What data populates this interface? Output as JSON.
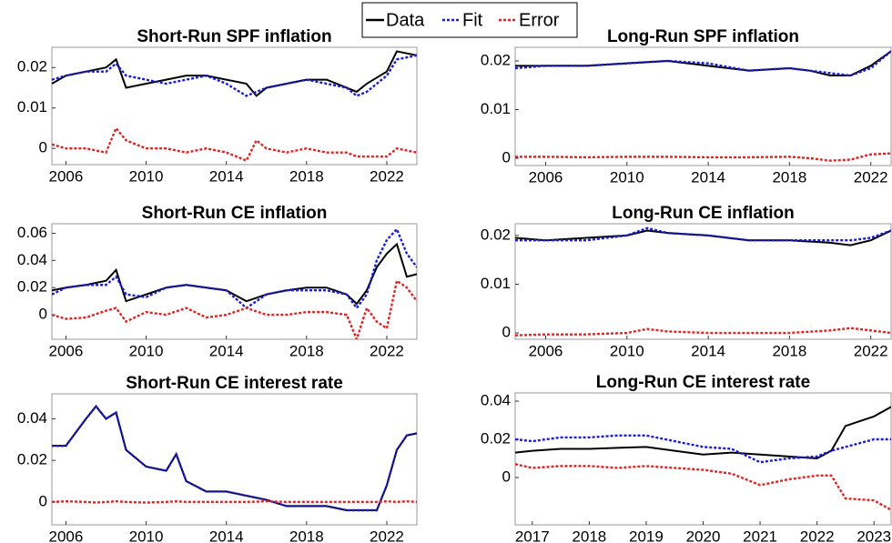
{
  "chart_data": [
    {
      "type": "line",
      "title": "Short-Run SPF inflation",
      "x": [
        2005.3,
        2006,
        2007,
        2008,
        2008.5,
        2009,
        2010,
        2011,
        2012,
        2013,
        2014,
        2015,
        2015.5,
        2016,
        2017,
        2018,
        2019,
        2020,
        2020.5,
        2021,
        2022,
        2022.5,
        2023.5
      ],
      "series": [
        {
          "name": "Data",
          "color": "#000000",
          "values": [
            0.016,
            0.018,
            0.019,
            0.02,
            0.022,
            0.015,
            0.016,
            0.017,
            0.018,
            0.018,
            0.017,
            0.016,
            0.013,
            0.015,
            0.016,
            0.017,
            0.017,
            0.015,
            0.014,
            0.016,
            0.019,
            0.024,
            0.023
          ]
        },
        {
          "name": "Fit",
          "color": "#1c1cd8",
          "values": [
            0.017,
            0.018,
            0.019,
            0.019,
            0.021,
            0.018,
            0.017,
            0.016,
            0.017,
            0.018,
            0.016,
            0.013,
            0.014,
            0.015,
            0.016,
            0.017,
            0.016,
            0.015,
            0.013,
            0.014,
            0.018,
            0.022,
            0.023
          ]
        },
        {
          "name": "Error",
          "color": "#e02424",
          "values": [
            0.001,
            0,
            0,
            -0.001,
            0.005,
            0.002,
            0,
            0,
            -0.001,
            0,
            -0.001,
            -0.003,
            0.002,
            0,
            -0.001,
            0,
            -0.001,
            -0.001,
            -0.002,
            -0.002,
            -0.002,
            0,
            -0.001
          ]
        }
      ],
      "xlim": [
        2005.3,
        2023.5
      ],
      "xticks": [
        2006,
        2010,
        2014,
        2018,
        2022
      ],
      "ylim": [
        -0.004,
        0.025
      ],
      "yticks": [
        0,
        0.01,
        0.02
      ]
    },
    {
      "type": "line",
      "title": "Long-Run SPF inflation",
      "x": [
        2004.5,
        2006,
        2008,
        2010,
        2012,
        2014,
        2016,
        2018,
        2019,
        2020,
        2021,
        2022,
        2023
      ],
      "series": [
        {
          "name": "Data",
          "color": "#000000",
          "values": [
            0.019,
            0.019,
            0.019,
            0.0195,
            0.02,
            0.019,
            0.018,
            0.0185,
            0.018,
            0.017,
            0.017,
            0.019,
            0.022
          ]
        },
        {
          "name": "Fit",
          "color": "#1c1cd8",
          "values": [
            0.0185,
            0.019,
            0.019,
            0.0195,
            0.02,
            0.0195,
            0.018,
            0.0185,
            0.018,
            0.0175,
            0.017,
            0.0185,
            0.022
          ]
        },
        {
          "name": "Error",
          "color": "#e02424",
          "values": [
            0.0003,
            0.0003,
            0.0002,
            0.0003,
            0.0003,
            0.0002,
            0.0002,
            0.0003,
            0,
            -0.0005,
            -0.0003,
            0.0008,
            0.001
          ]
        }
      ],
      "xlim": [
        2004.5,
        2023
      ],
      "xticks": [
        2006,
        2010,
        2014,
        2018,
        2022
      ],
      "ylim": [
        -0.0015,
        0.0228
      ],
      "yticks": [
        0,
        0.01,
        0.02
      ]
    },
    {
      "type": "line",
      "title": "Short-Run CE inflation",
      "x": [
        2005.3,
        2006,
        2007,
        2008,
        2008.5,
        2009,
        2010,
        2011,
        2012,
        2013,
        2014,
        2015,
        2016,
        2017,
        2018,
        2019,
        2020,
        2020.5,
        2021,
        2021.5,
        2022,
        2022.5,
        2023,
        2023.5
      ],
      "series": [
        {
          "name": "Data",
          "color": "#000000",
          "values": [
            0.018,
            0.02,
            0.022,
            0.025,
            0.033,
            0.01,
            0.015,
            0.02,
            0.022,
            0.02,
            0.018,
            0.01,
            0.015,
            0.018,
            0.02,
            0.02,
            0.015,
            0.008,
            0.018,
            0.035,
            0.045,
            0.052,
            0.028,
            0.03
          ]
        },
        {
          "name": "Fit",
          "color": "#1c1cd8",
          "values": [
            0.015,
            0.02,
            0.022,
            0.022,
            0.028,
            0.015,
            0.013,
            0.02,
            0.022,
            0.02,
            0.018,
            0.005,
            0.015,
            0.018,
            0.018,
            0.018,
            0.015,
            0.005,
            0.015,
            0.04,
            0.055,
            0.063,
            0.045,
            0.035
          ]
        },
        {
          "name": "Error",
          "color": "#e02424",
          "values": [
            0,
            -0.003,
            -0.002,
            0.003,
            0.005,
            -0.005,
            0.002,
            0,
            0.005,
            -0.002,
            0,
            0.005,
            0,
            0,
            0.002,
            0.002,
            0,
            -0.018,
            0.005,
            -0.005,
            -0.01,
            0.025,
            0.02,
            0.01
          ]
        }
      ],
      "xlim": [
        2005.3,
        2023.5
      ],
      "xticks": [
        2006,
        2010,
        2014,
        2018,
        2022
      ],
      "ylim": [
        -0.018,
        0.067
      ],
      "yticks": [
        0,
        0.02,
        0.04,
        0.06
      ]
    },
    {
      "type": "line",
      "title": "Long-Run CE inflation",
      "x": [
        2004.5,
        2006,
        2008,
        2010,
        2011,
        2012,
        2014,
        2016,
        2018,
        2020,
        2021,
        2022,
        2023
      ],
      "series": [
        {
          "name": "Data",
          "color": "#000000",
          "values": [
            0.0195,
            0.019,
            0.0195,
            0.02,
            0.021,
            0.0205,
            0.02,
            0.019,
            0.019,
            0.0185,
            0.018,
            0.019,
            0.021
          ]
        },
        {
          "name": "Fit",
          "color": "#1c1cd8",
          "values": [
            0.019,
            0.019,
            0.019,
            0.02,
            0.0215,
            0.0205,
            0.02,
            0.019,
            0.019,
            0.019,
            0.019,
            0.0195,
            0.021
          ]
        },
        {
          "name": "Error",
          "color": "#e02424",
          "values": [
            -0.0005,
            -0.0003,
            -0.0003,
            0,
            0.0008,
            0.0003,
            0,
            0,
            0,
            0.0005,
            0.001,
            0.0005,
            0
          ]
        }
      ],
      "xlim": [
        2004.5,
        2023
      ],
      "xticks": [
        2006,
        2010,
        2014,
        2018,
        2022
      ],
      "ylim": [
        -0.0013,
        0.0224
      ],
      "yticks": [
        0,
        0.01,
        0.02
      ]
    },
    {
      "type": "line",
      "title": "Short-Run CE interest rate",
      "x": [
        2005.3,
        2006,
        2007,
        2007.5,
        2008,
        2008.5,
        2009,
        2010,
        2011,
        2011.5,
        2012,
        2013,
        2014,
        2015,
        2016,
        2017,
        2018,
        2019,
        2020,
        2021,
        2021.5,
        2022,
        2022.5,
        2023,
        2023.5
      ],
      "series": [
        {
          "name": "Data",
          "color": "#000000",
          "values": [
            0.027,
            0.027,
            0.04,
            0.046,
            0.04,
            0.043,
            0.025,
            0.017,
            0.015,
            0.023,
            0.01,
            0.005,
            0.005,
            0.003,
            0.001,
            -0.002,
            -0.002,
            -0.002,
            -0.004,
            -0.004,
            -0.004,
            0.008,
            0.025,
            0.032,
            0.033
          ]
        },
        {
          "name": "Fit",
          "color": "#1c1cd8",
          "values": [
            0.027,
            0.027,
            0.04,
            0.046,
            0.04,
            0.043,
            0.025,
            0.017,
            0.015,
            0.023,
            0.01,
            0.005,
            0.005,
            0.003,
            0.001,
            -0.002,
            -0.002,
            -0.002,
            -0.004,
            -0.004,
            -0.004,
            0.008,
            0.025,
            0.032,
            0.033
          ]
        },
        {
          "name": "Error",
          "color": "#e02424",
          "values": [
            0,
            0.0003,
            0,
            -0.0003,
            0,
            0.0003,
            0,
            -0.0003,
            0,
            0.0003,
            0,
            0,
            0,
            0,
            0.0003,
            0,
            0,
            0,
            0,
            0,
            0,
            0.0003,
            0,
            0.0003,
            0
          ]
        }
      ],
      "xlim": [
        2005.3,
        2023.5
      ],
      "xticks": [
        2006,
        2010,
        2014,
        2018,
        2022
      ],
      "ylim": [
        -0.011,
        0.052
      ],
      "yticks": [
        0,
        0.02,
        0.04
      ]
    },
    {
      "type": "line",
      "title": "Long-Run CE interest rate",
      "x": [
        2016.7,
        2017,
        2017.5,
        2018,
        2018.5,
        2019,
        2019.5,
        2020,
        2020.5,
        2021,
        2021.5,
        2022,
        2022.25,
        2022.5,
        2023,
        2023.3
      ],
      "series": [
        {
          "name": "Data",
          "color": "#000000",
          "values": [
            0.013,
            0.014,
            0.015,
            0.015,
            0.0155,
            0.016,
            0.014,
            0.012,
            0.013,
            0.012,
            0.011,
            0.01,
            0.014,
            0.027,
            0.032,
            0.037
          ]
        },
        {
          "name": "Fit",
          "color": "#1c1cd8",
          "values": [
            0.02,
            0.019,
            0.021,
            0.021,
            0.022,
            0.022,
            0.019,
            0.016,
            0.015,
            0.008,
            0.01,
            0.011,
            0.014,
            0.016,
            0.02,
            0.02
          ]
        },
        {
          "name": "Error",
          "color": "#e02424",
          "values": [
            0.007,
            0.005,
            0.006,
            0.006,
            0.005,
            0.006,
            0.005,
            0.004,
            0.002,
            -0.004,
            -0.001,
            0.001,
            0.001,
            -0.011,
            -0.012,
            -0.017
          ]
        }
      ],
      "xlim": [
        2016.7,
        2023.3
      ],
      "xticks": [
        2017,
        2018,
        2019,
        2020,
        2021,
        2022,
        2023
      ],
      "ylim": [
        -0.0248,
        0.0443
      ],
      "yticks": [
        0,
        0.02,
        0.04
      ]
    }
  ]
}
